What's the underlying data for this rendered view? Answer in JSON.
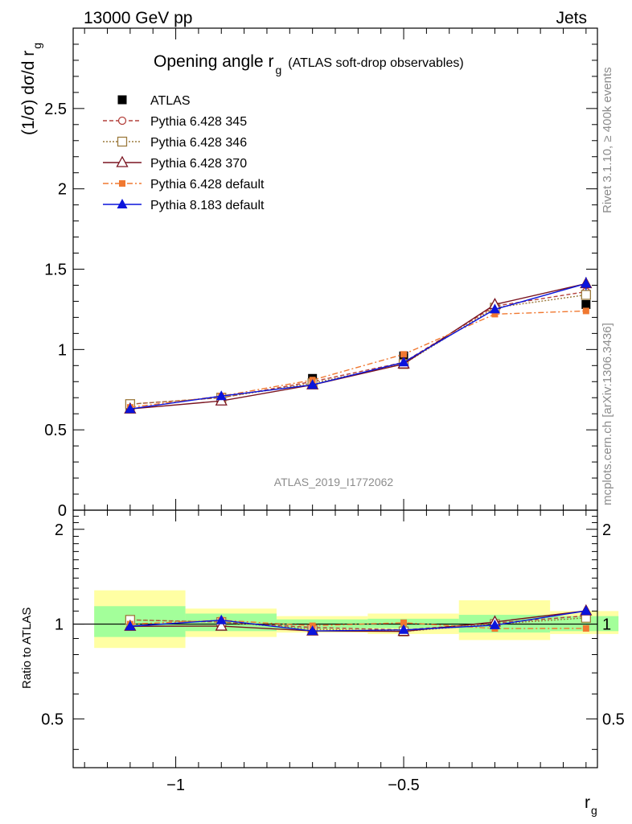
{
  "header": {
    "left": "13000 GeV pp",
    "right": "Jets"
  },
  "side": {
    "rivet": "Rivet 3.1.10, ≥ 400k events",
    "mcplots": "mcplots.cern.ch [arXiv:1306.3436]"
  },
  "watermark": "ATLAS_2019_I1772062",
  "chart_data": {
    "type": "line",
    "title": "Opening angle r",
    "title_sub": "g",
    "title_suffix": "(ATLAS soft-drop observables)",
    "ylabel": "(1/σ) dσ/d r",
    "ylabel_sub": "g",
    "xlabel": "r",
    "xlabel_sub": "g",
    "ratio_ylabel": "Ratio to ATLAS",
    "x": [
      -1.1,
      -0.9,
      -0.7,
      -0.5,
      -0.3,
      -0.1
    ],
    "xlim": [
      -1.225,
      -0.075
    ],
    "ylim": [
      0,
      3.0
    ],
    "ratio_ylim": [
      0.35,
      2.3
    ],
    "x_ticks": [
      -1,
      -0.5
    ],
    "x_tick_labels": [
      "−1",
      "−0.5"
    ],
    "y_ticks": [
      0.5,
      1,
      1.5,
      2,
      2.5
    ],
    "y_tick_labels": [
      "0.5",
      "1",
      "1.5",
      "2",
      "2.5"
    ],
    "y_zero_label": "0",
    "ratio_ticks": [
      0.5,
      1,
      2
    ],
    "ratio_tick_labels": [
      "0.5",
      "1",
      "2"
    ],
    "data": {
      "name": "ATLAS",
      "values": [
        0.64,
        0.69,
        0.82,
        0.96,
        1.26,
        1.28
      ]
    },
    "bins": [
      -1.2,
      -1.0,
      -0.8,
      -0.6,
      -0.4,
      -0.2,
      -0.05
    ],
    "band_green": [
      [
        0.91,
        1.14
      ],
      [
        0.95,
        1.08
      ],
      [
        0.965,
        1.035
      ],
      [
        0.97,
        1.04
      ],
      [
        0.94,
        1.07
      ],
      [
        0.95,
        1.06
      ]
    ],
    "band_yellow": [
      [
        0.84,
        1.28
      ],
      [
        0.91,
        1.12
      ],
      [
        0.94,
        1.06
      ],
      [
        0.93,
        1.08
      ],
      [
        0.89,
        1.19
      ],
      [
        0.93,
        1.1
      ]
    ],
    "series": [
      {
        "name": "Pythia 6.428 345",
        "values": [
          0.66,
          0.7,
          0.8,
          0.92,
          1.27,
          1.36
        ],
        "color": "#b4413c",
        "marker": "circle-open",
        "dash": "5,3"
      },
      {
        "name": "Pythia 6.428 346",
        "values": [
          0.66,
          0.7,
          0.79,
          0.91,
          1.26,
          1.34
        ],
        "color": "#9c7a3c",
        "marker": "square-open",
        "dash": "2,2"
      },
      {
        "name": "Pythia 6.428 370",
        "values": [
          0.63,
          0.68,
          0.78,
          0.91,
          1.28,
          1.41
        ],
        "color": "#7a1420",
        "marker": "triangle-open",
        "dash": ""
      },
      {
        "name": "Pythia 6.428 default",
        "values": [
          0.64,
          0.71,
          0.81,
          0.97,
          1.22,
          1.24
        ],
        "color": "#f07830",
        "marker": "square-filled",
        "dash": "7,3,2,3"
      },
      {
        "name": "Pythia 8.183 default",
        "values": [
          0.63,
          0.71,
          0.78,
          0.92,
          1.25,
          1.41
        ],
        "color": "#0a14dc",
        "marker": "triangle-filled",
        "dash": ""
      }
    ]
  }
}
